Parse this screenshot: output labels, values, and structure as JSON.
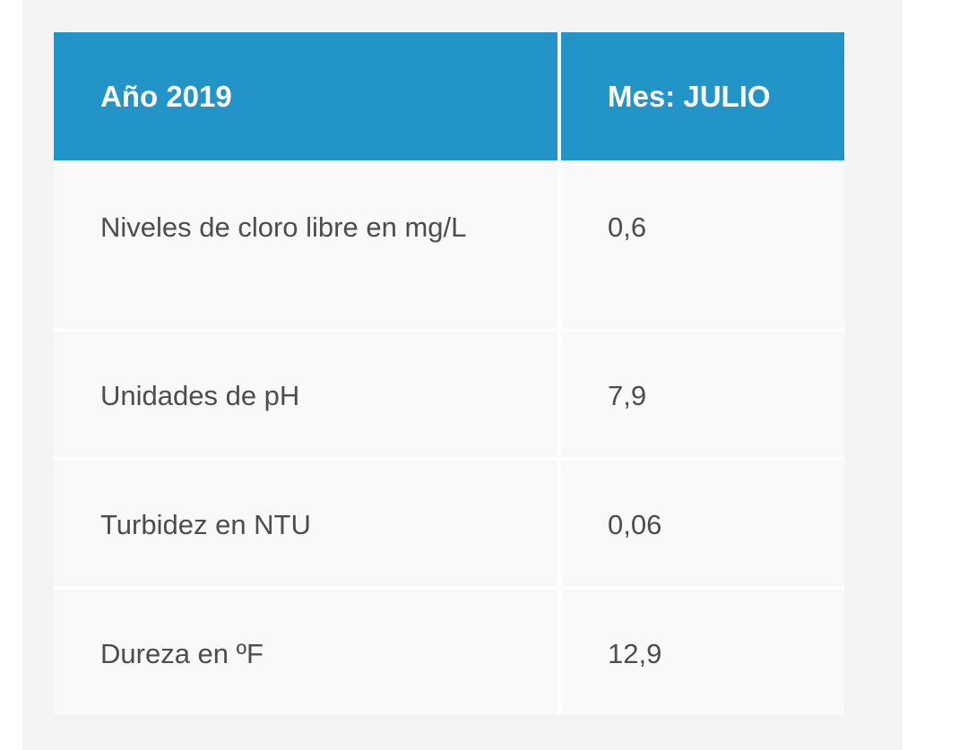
{
  "table": {
    "headers": [
      "Año 2019",
      "Mes: JULIO"
    ],
    "rows": [
      [
        "Niveles de cloro libre en mg/L",
        "0,6"
      ],
      [
        "Unidades de pH",
        "7,9"
      ],
      [
        "Turbidez en NTU",
        "0,06"
      ],
      [
        "Dureza en ºF",
        "12,9"
      ]
    ]
  },
  "colors": {
    "header_background": "#2294c8",
    "header_text": "#ffffff",
    "cell_background": "#f9f9f9",
    "cell_text": "#4d4d4d",
    "page_background": "#f4f4f4"
  }
}
